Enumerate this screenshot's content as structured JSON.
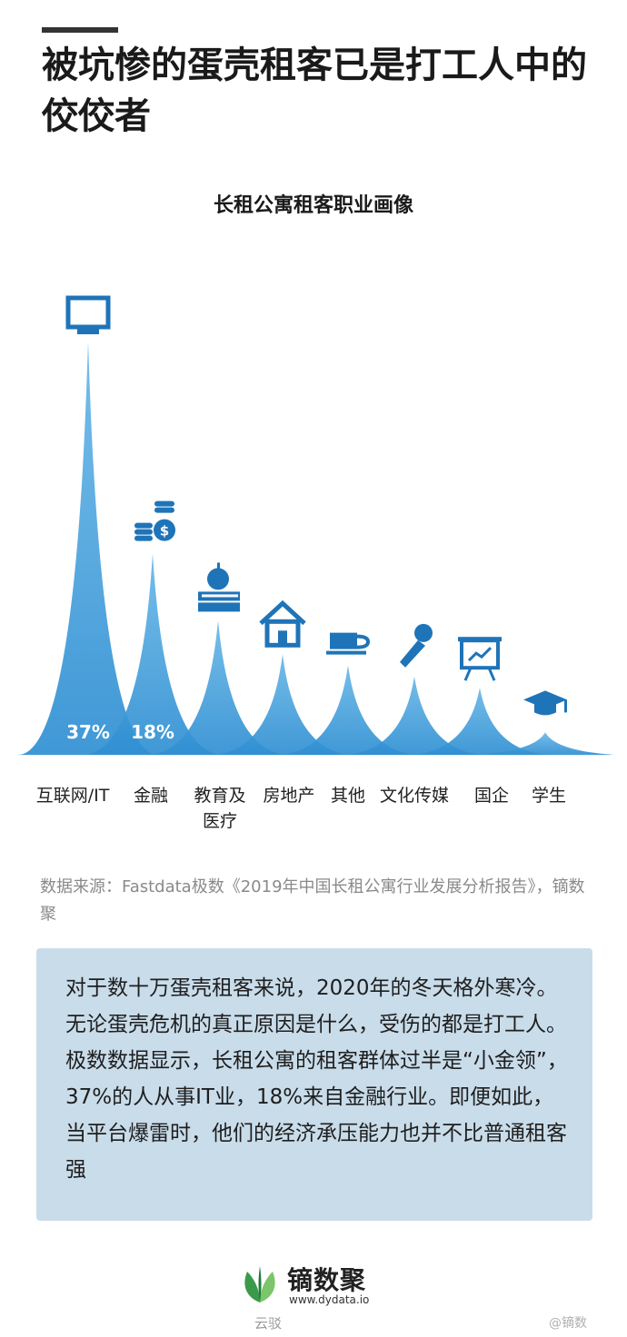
{
  "header": {
    "title": "被坑惨的蛋壳租客已是打工人中的佼佼者"
  },
  "chart_data": {
    "type": "area",
    "title": "长租公寓租客职业画像",
    "categories": [
      "互联网/IT",
      "金融",
      "教育及医疗",
      "房地产",
      "其他",
      "文化传媒",
      "国企",
      "学生"
    ],
    "values": [
      37,
      18,
      12,
      9,
      8,
      7,
      6,
      2
    ],
    "value_labels": [
      "37%",
      "18%",
      "",
      "",
      "",
      "",
      "",
      ""
    ],
    "icons": [
      "monitor-icon",
      "coins-icon",
      "apple-books-icon",
      "house-icon",
      "coffee-cup-icon",
      "microphone-icon",
      "presentation-board-icon",
      "graduation-cap-icon"
    ],
    "color": "#3d9bd8",
    "color_dark": "#1f74b8",
    "legend": "none",
    "grid": false
  },
  "source": {
    "text": "数据来源：Fastdata极数《2019年中国长租公寓行业发展分析报告》，镝数聚"
  },
  "panel": {
    "text": "对于数十万蛋壳租客来说，2020年的冬天格外寒冷。无论蛋壳危机的真正原因是什么，受伤的都是打工人。极数数据显示，长租公寓的租客群体过半是“小金领”，37%的人从事IT业，18%来自金融行业。即便如此，当平台爆雷时，他们的经济承压能力也并不比普通租客强"
  },
  "brand": {
    "name": "镝数聚",
    "url": "www.dydata.io",
    "logo": "leaf-logo"
  },
  "watermark": {
    "left": "云驳",
    "right": "@镝数"
  }
}
